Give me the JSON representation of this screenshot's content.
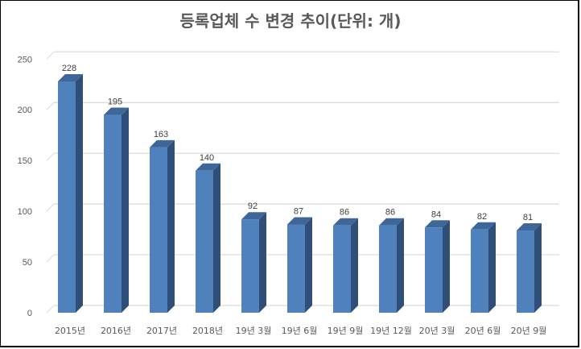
{
  "chart_data": {
    "type": "bar",
    "title": "등록업체 수 변경 추이(단위: 개)",
    "xlabel": "",
    "ylabel": "",
    "categories": [
      "2015년",
      "2016년",
      "2017년",
      "2018년",
      "19년 3월",
      "19년 6월",
      "19년 9월",
      "19년 12월",
      "20년 3월",
      "20년 6월",
      "20년 9월"
    ],
    "values": [
      228,
      195,
      163,
      140,
      92,
      87,
      86,
      86,
      84,
      82,
      81
    ],
    "ylim": [
      0,
      250
    ],
    "yticks": [
      0,
      50,
      100,
      150,
      200,
      250
    ],
    "grid": true,
    "legend": "none",
    "style": "3d-column",
    "data_labels": true
  },
  "colors": {
    "bar_front": "#4f81bd",
    "bar_side": "#2f4f78",
    "bar_top": "#3e6698",
    "gridline": "#d9d9d9",
    "text": "#595959",
    "title": "#595959"
  }
}
